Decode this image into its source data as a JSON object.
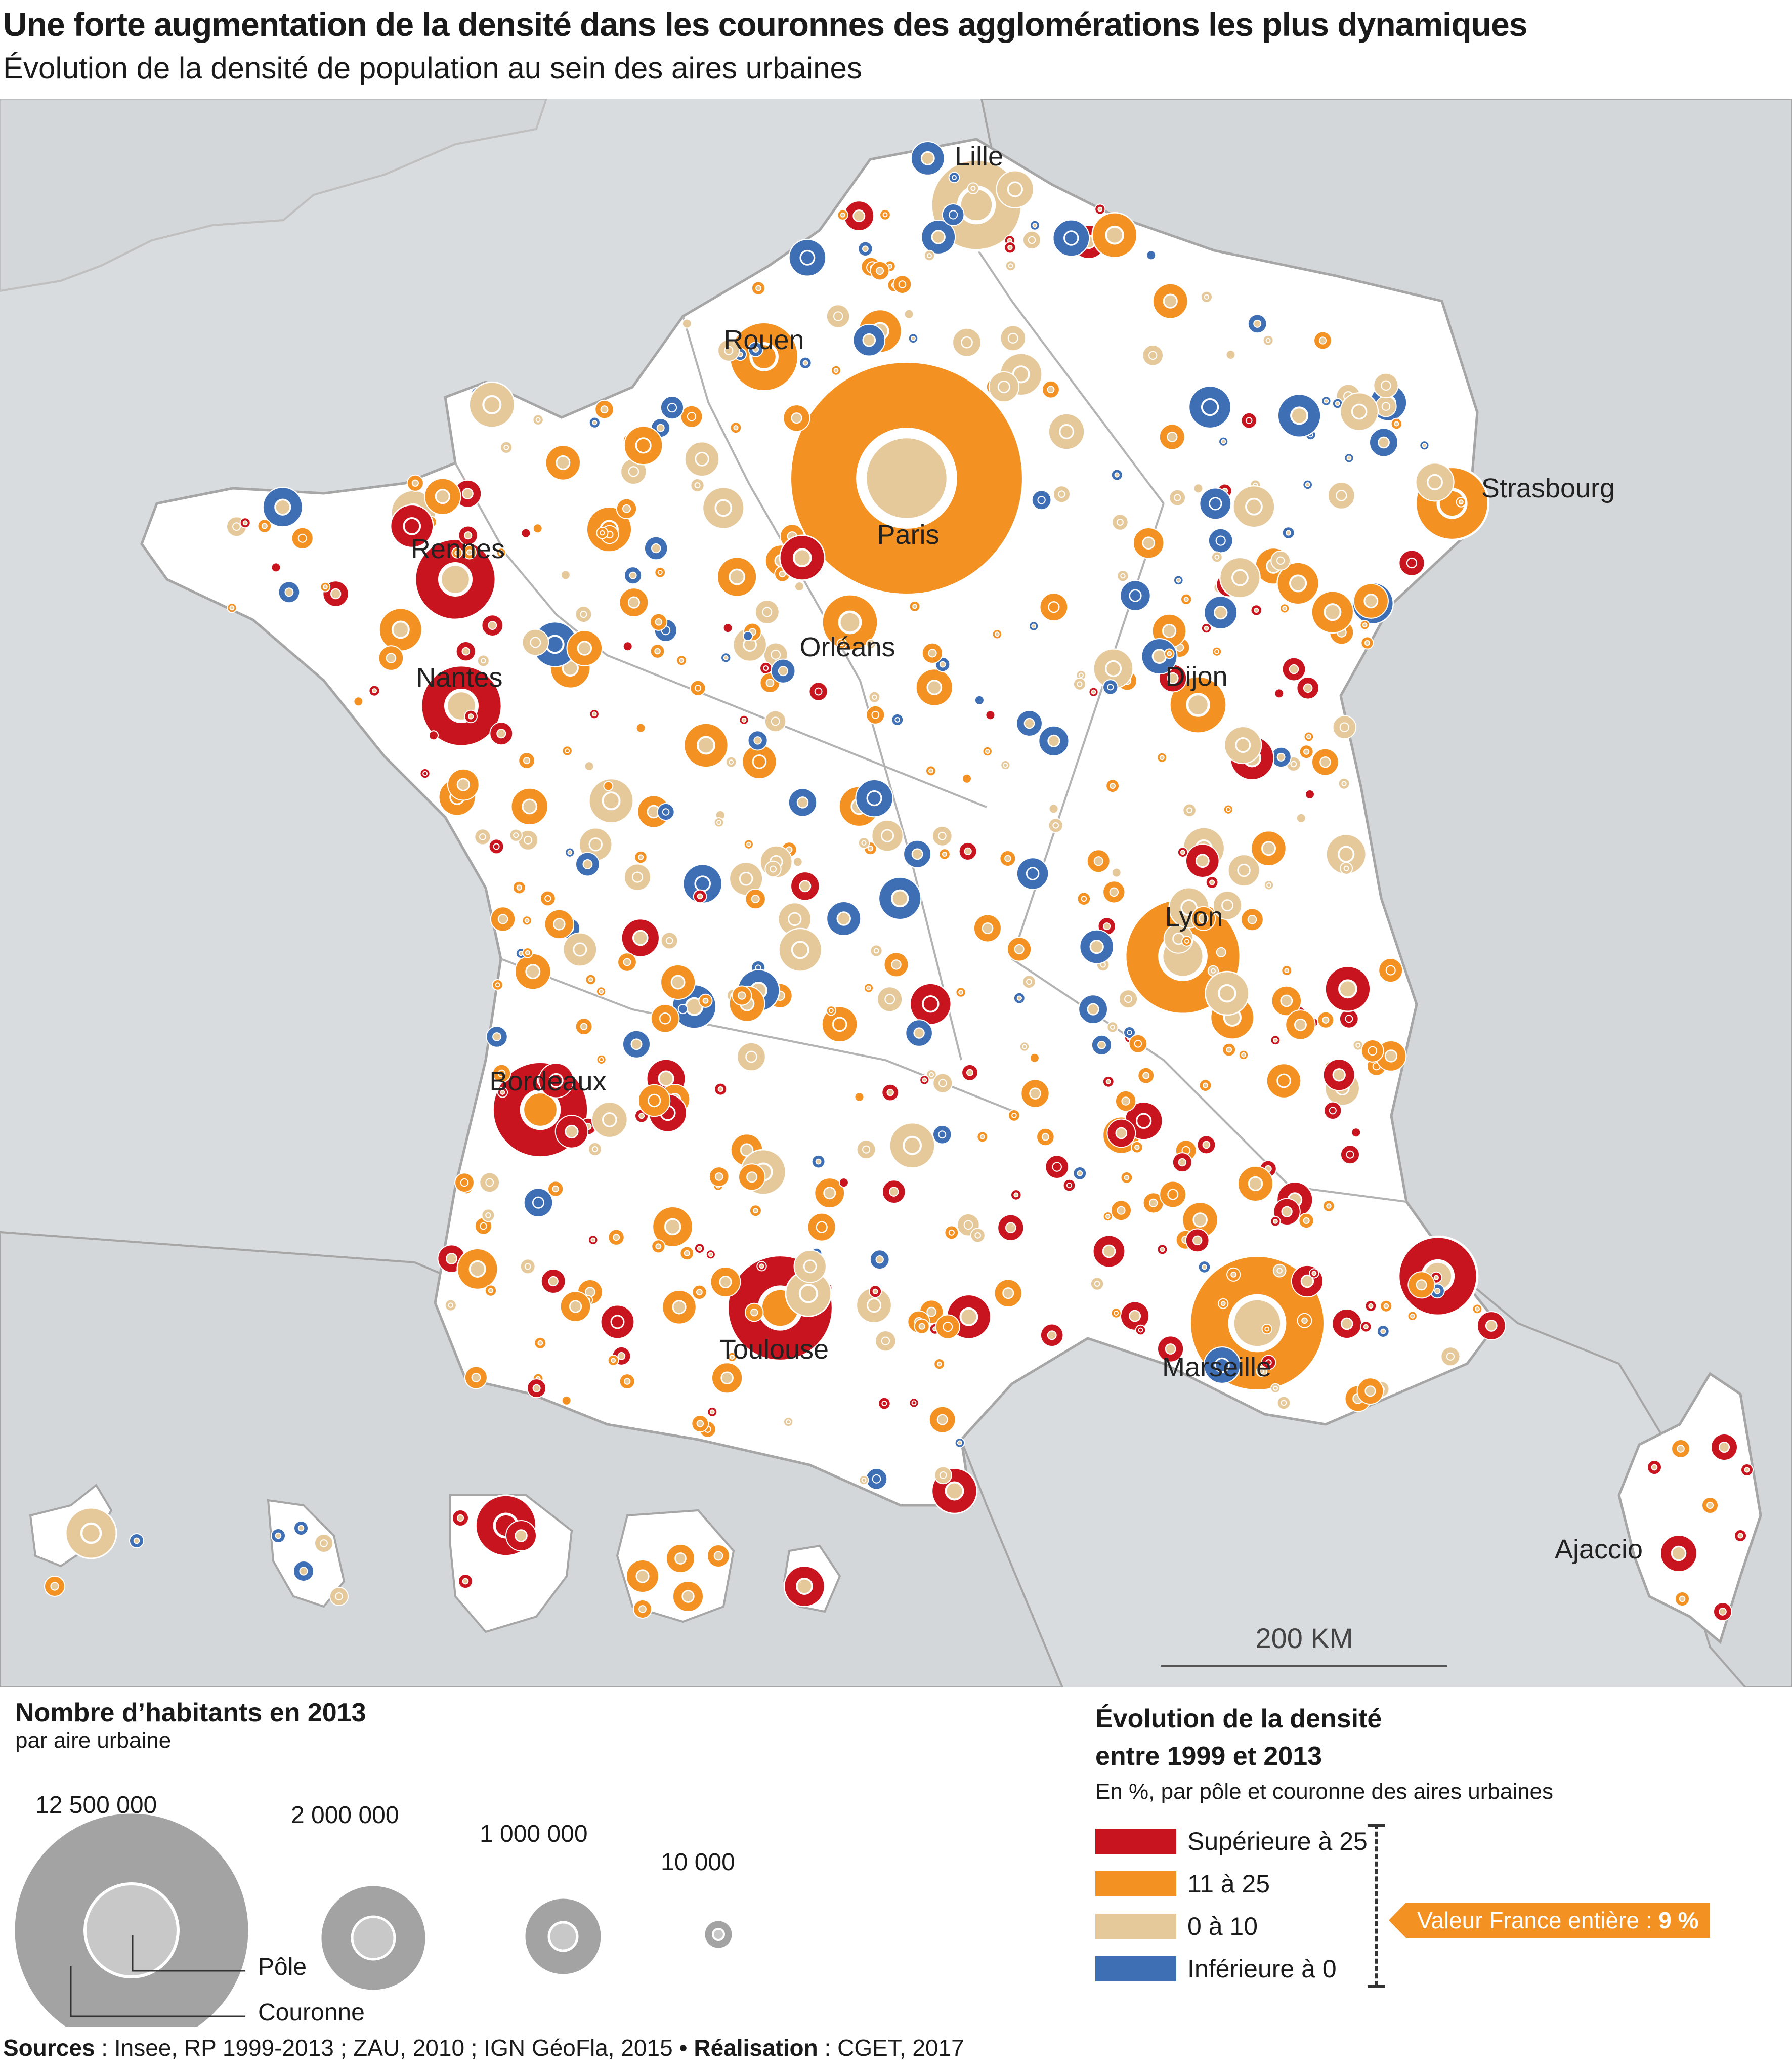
{
  "title": "Une forte augmentation de la densité dans les couronnes des agglomérations les plus dynamiques",
  "subtitle": "Évolution de la densité de population au sein des aires urbaines",
  "colors": {
    "sea": "#d9dcde",
    "land_france": "#ffffff",
    "land_neighbors": "#d4d7d9",
    "border": "#a6a6a6",
    "superieure_25": "#c8141e",
    "11_25": "#f39222",
    "0_10": "#e6c99a",
    "inferieure_0": "#3e6fb5",
    "legend_circle": "#a3a3a3",
    "legend_pole": "#c8c8c8"
  },
  "map": {
    "scale_label": "200 KM",
    "cities": [
      {
        "name": "Lille"
      },
      {
        "name": "Rouen"
      },
      {
        "name": "Paris"
      },
      {
        "name": "Strasbourg"
      },
      {
        "name": "Rennes"
      },
      {
        "name": "Nantes"
      },
      {
        "name": "Orléans"
      },
      {
        "name": "Dijon"
      },
      {
        "name": "Lyon"
      },
      {
        "name": "Bordeaux"
      },
      {
        "name": "Toulouse"
      },
      {
        "name": "Marseille"
      },
      {
        "name": "Ajaccio"
      }
    ]
  },
  "legend_size": {
    "title": "Nombre d’habitants en 2013",
    "subtitle": "par aire urbaine",
    "sizes": [
      {
        "label": "12 500 000",
        "value": 12500000
      },
      {
        "label": "2 000 000",
        "value": 2000000
      },
      {
        "label": "1 000 000",
        "value": 1000000
      },
      {
        "label": "10 000",
        "value": 10000
      }
    ],
    "pole_label": "Pôle",
    "couronne_label": "Couronne"
  },
  "legend_color": {
    "title_line1": "Évolution de la densité",
    "title_line2": "entre 1999 et 2013",
    "subtitle": "En %, par pôle et couronne des aires urbaines",
    "classes": [
      {
        "label": "Supérieure à 25",
        "color": "#c8141e"
      },
      {
        "label": "11 à 25",
        "color": "#f39222"
      },
      {
        "label": "0 à 10",
        "color": "#e6c99a"
      },
      {
        "label": "Inférieure à 0",
        "color": "#3e6fb5"
      }
    ],
    "france_value_text": "Valeur France entière : ",
    "france_value": "9 %"
  },
  "sources": {
    "label": "Sources",
    "text": " : Insee, RP 1999-2013 ; ZAU, 2010 ; IGN GéoFla, 2015 • ",
    "realisation_label": "Réalisation",
    "realisation_text": " : CGET, 2017"
  }
}
